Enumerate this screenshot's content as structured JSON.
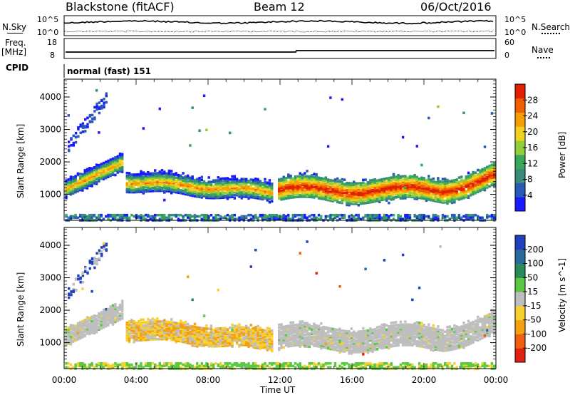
{
  "header": {
    "station": "Blackstone (fitACF)",
    "beam": "Beam 12",
    "date": "06/Oct/2016"
  },
  "top_panels": {
    "nsky_label": "N.Sky",
    "nsearch_label": "N.Search",
    "nsky_ticks": [
      "10^5",
      "10^0"
    ],
    "nsearch_ticks": [
      "10^5",
      "10^0"
    ],
    "freq_label": "Freq.",
    "freq_unit": "[MHz]",
    "freq_ticks": [
      "18",
      "8"
    ],
    "nave_label": "Nave",
    "nave_ticks": [
      "60",
      "0"
    ],
    "cpid_label": "CPID",
    "cpid_text": "normal (fast) 151"
  },
  "colors": {
    "power_scale": [
      "#1a1aff",
      "#2a5ab8",
      "#3a8c7a",
      "#3aa85a",
      "#8fcf3a",
      "#f0d020",
      "#f5a000",
      "#f06000",
      "#e02000"
    ],
    "velocity_scale": [
      "#2040c0",
      "#2a6a9a",
      "#2a8a5a",
      "#5ac840",
      "#bebebe",
      "#f5d030",
      "#f5a010",
      "#f06010",
      "#e02010"
    ]
  },
  "chart_data": [
    {
      "type": "heatmap",
      "xlabel": "",
      "ylabel": "Slant Range [km]",
      "x_range": [
        "00:00",
        "00:00"
      ],
      "y_ticks": [
        1000,
        2000,
        3000,
        4000
      ],
      "ylim": [
        200,
        4550
      ],
      "colorbar_label": "Power [dB]",
      "colorbar_ticks": [
        4,
        8,
        12,
        16,
        20,
        24,
        28
      ],
      "colorbar_range": [
        0,
        32
      ]
    },
    {
      "type": "heatmap",
      "xlabel": "Time UT",
      "ylabel": "Slant Range [km]",
      "x_ticks": [
        "00:00",
        "04:00",
        "08:00",
        "12:00",
        "16:00",
        "20:00",
        "00:00"
      ],
      "y_ticks": [
        1000,
        2000,
        3000,
        4000
      ],
      "ylim": [
        200,
        4550
      ],
      "colorbar_label": "Velocity [m s^-1]",
      "colorbar_ticks": [
        200,
        100,
        50,
        15,
        -15,
        -50,
        -100,
        -200
      ]
    }
  ]
}
